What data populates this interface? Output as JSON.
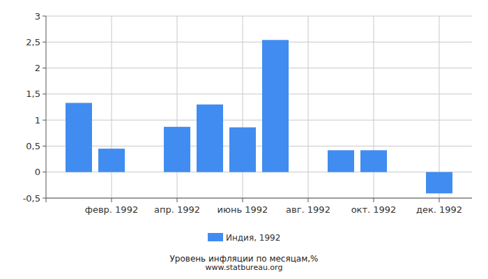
{
  "chart_data": {
    "type": "bar",
    "title": "Уровень инфляции по месяцам,%",
    "subtitle": "www.statbureau.org",
    "categories": [
      null,
      "февр. 1992",
      null,
      "апр. 1992",
      null,
      "июнь 1992",
      null,
      "авг. 1992",
      null,
      "окт. 1992",
      null,
      "дек. 1992"
    ],
    "series": [
      {
        "name": "Индия, 1992",
        "color": "#418cf0",
        "values": [
          1.33,
          0.45,
          0,
          0.87,
          1.3,
          0.86,
          2.54,
          0,
          0.42,
          0.42,
          0,
          -0.41
        ]
      }
    ],
    "ylim": [
      -0.5,
      3
    ],
    "yticks": [
      {
        "value": -0.5,
        "label": "-0,5"
      },
      0,
      {
        "value": 0.5,
        "label": "0,5"
      },
      1,
      {
        "value": 1.5,
        "label": "1,5"
      },
      2,
      {
        "value": 2.5,
        "label": "2,5"
      },
      3
    ],
    "grid": true,
    "legend": "bottom"
  }
}
